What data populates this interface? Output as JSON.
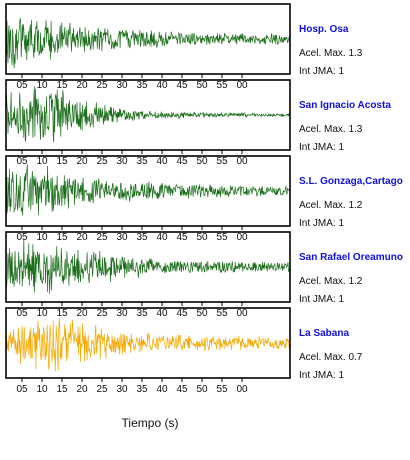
{
  "chart_data": {
    "type": "line",
    "xlabel": "Tiempo (s)",
    "tick_labels": [
      "05",
      "10",
      "15",
      "20",
      "25",
      "30",
      "35",
      "40",
      "45",
      "50",
      "55",
      "00"
    ],
    "panels": [
      {
        "name": "Hosp. Osa",
        "acel_label": "Acel. Max. 1.3",
        "int_label": "Int JMA: 1",
        "peak": 1.3,
        "color": "#1a6e1a",
        "decay": [
          1.0,
          0.8,
          0.6,
          0.45,
          0.38,
          0.32,
          0.28,
          0.25,
          0.22,
          0.2,
          0.18,
          0.17
        ]
      },
      {
        "name": "San Ignacio Acosta",
        "acel_label": "Acel. Max. 1.3",
        "int_label": "Int JMA: 1",
        "peak": 1.3,
        "color": "#1a6e1a",
        "decay": [
          0.7,
          1.0,
          0.9,
          0.55,
          0.3,
          0.18,
          0.12,
          0.1,
          0.08,
          0.07,
          0.06,
          0.05
        ]
      },
      {
        "name": "S.L. Gonzaga,Cartago",
        "acel_label": "Acel. Max. 1.2",
        "int_label": "Int JMA: 1",
        "peak": 1.2,
        "color": "#1a6e1a",
        "decay": [
          1.0,
          0.9,
          0.7,
          0.5,
          0.4,
          0.33,
          0.28,
          0.24,
          0.21,
          0.19,
          0.17,
          0.16
        ]
      },
      {
        "name": "San Rafael Oreamuno",
        "acel_label": "Acel. Max. 1.2",
        "int_label": "Int JMA: 1",
        "peak": 1.2,
        "color": "#1a6e1a",
        "decay": [
          0.7,
          1.0,
          0.8,
          0.6,
          0.5,
          0.35,
          0.25,
          0.22,
          0.2,
          0.18,
          0.17,
          0.16
        ]
      },
      {
        "name": "La Sabana",
        "acel_label": "Acel. Max. 0.7",
        "int_label": "Int JMA: 1",
        "peak": 0.7,
        "color": "#f5a800",
        "decay": [
          0.4,
          0.85,
          1.0,
          0.7,
          0.45,
          0.35,
          0.3,
          0.27,
          0.24,
          0.22,
          0.2,
          0.19
        ]
      }
    ]
  }
}
